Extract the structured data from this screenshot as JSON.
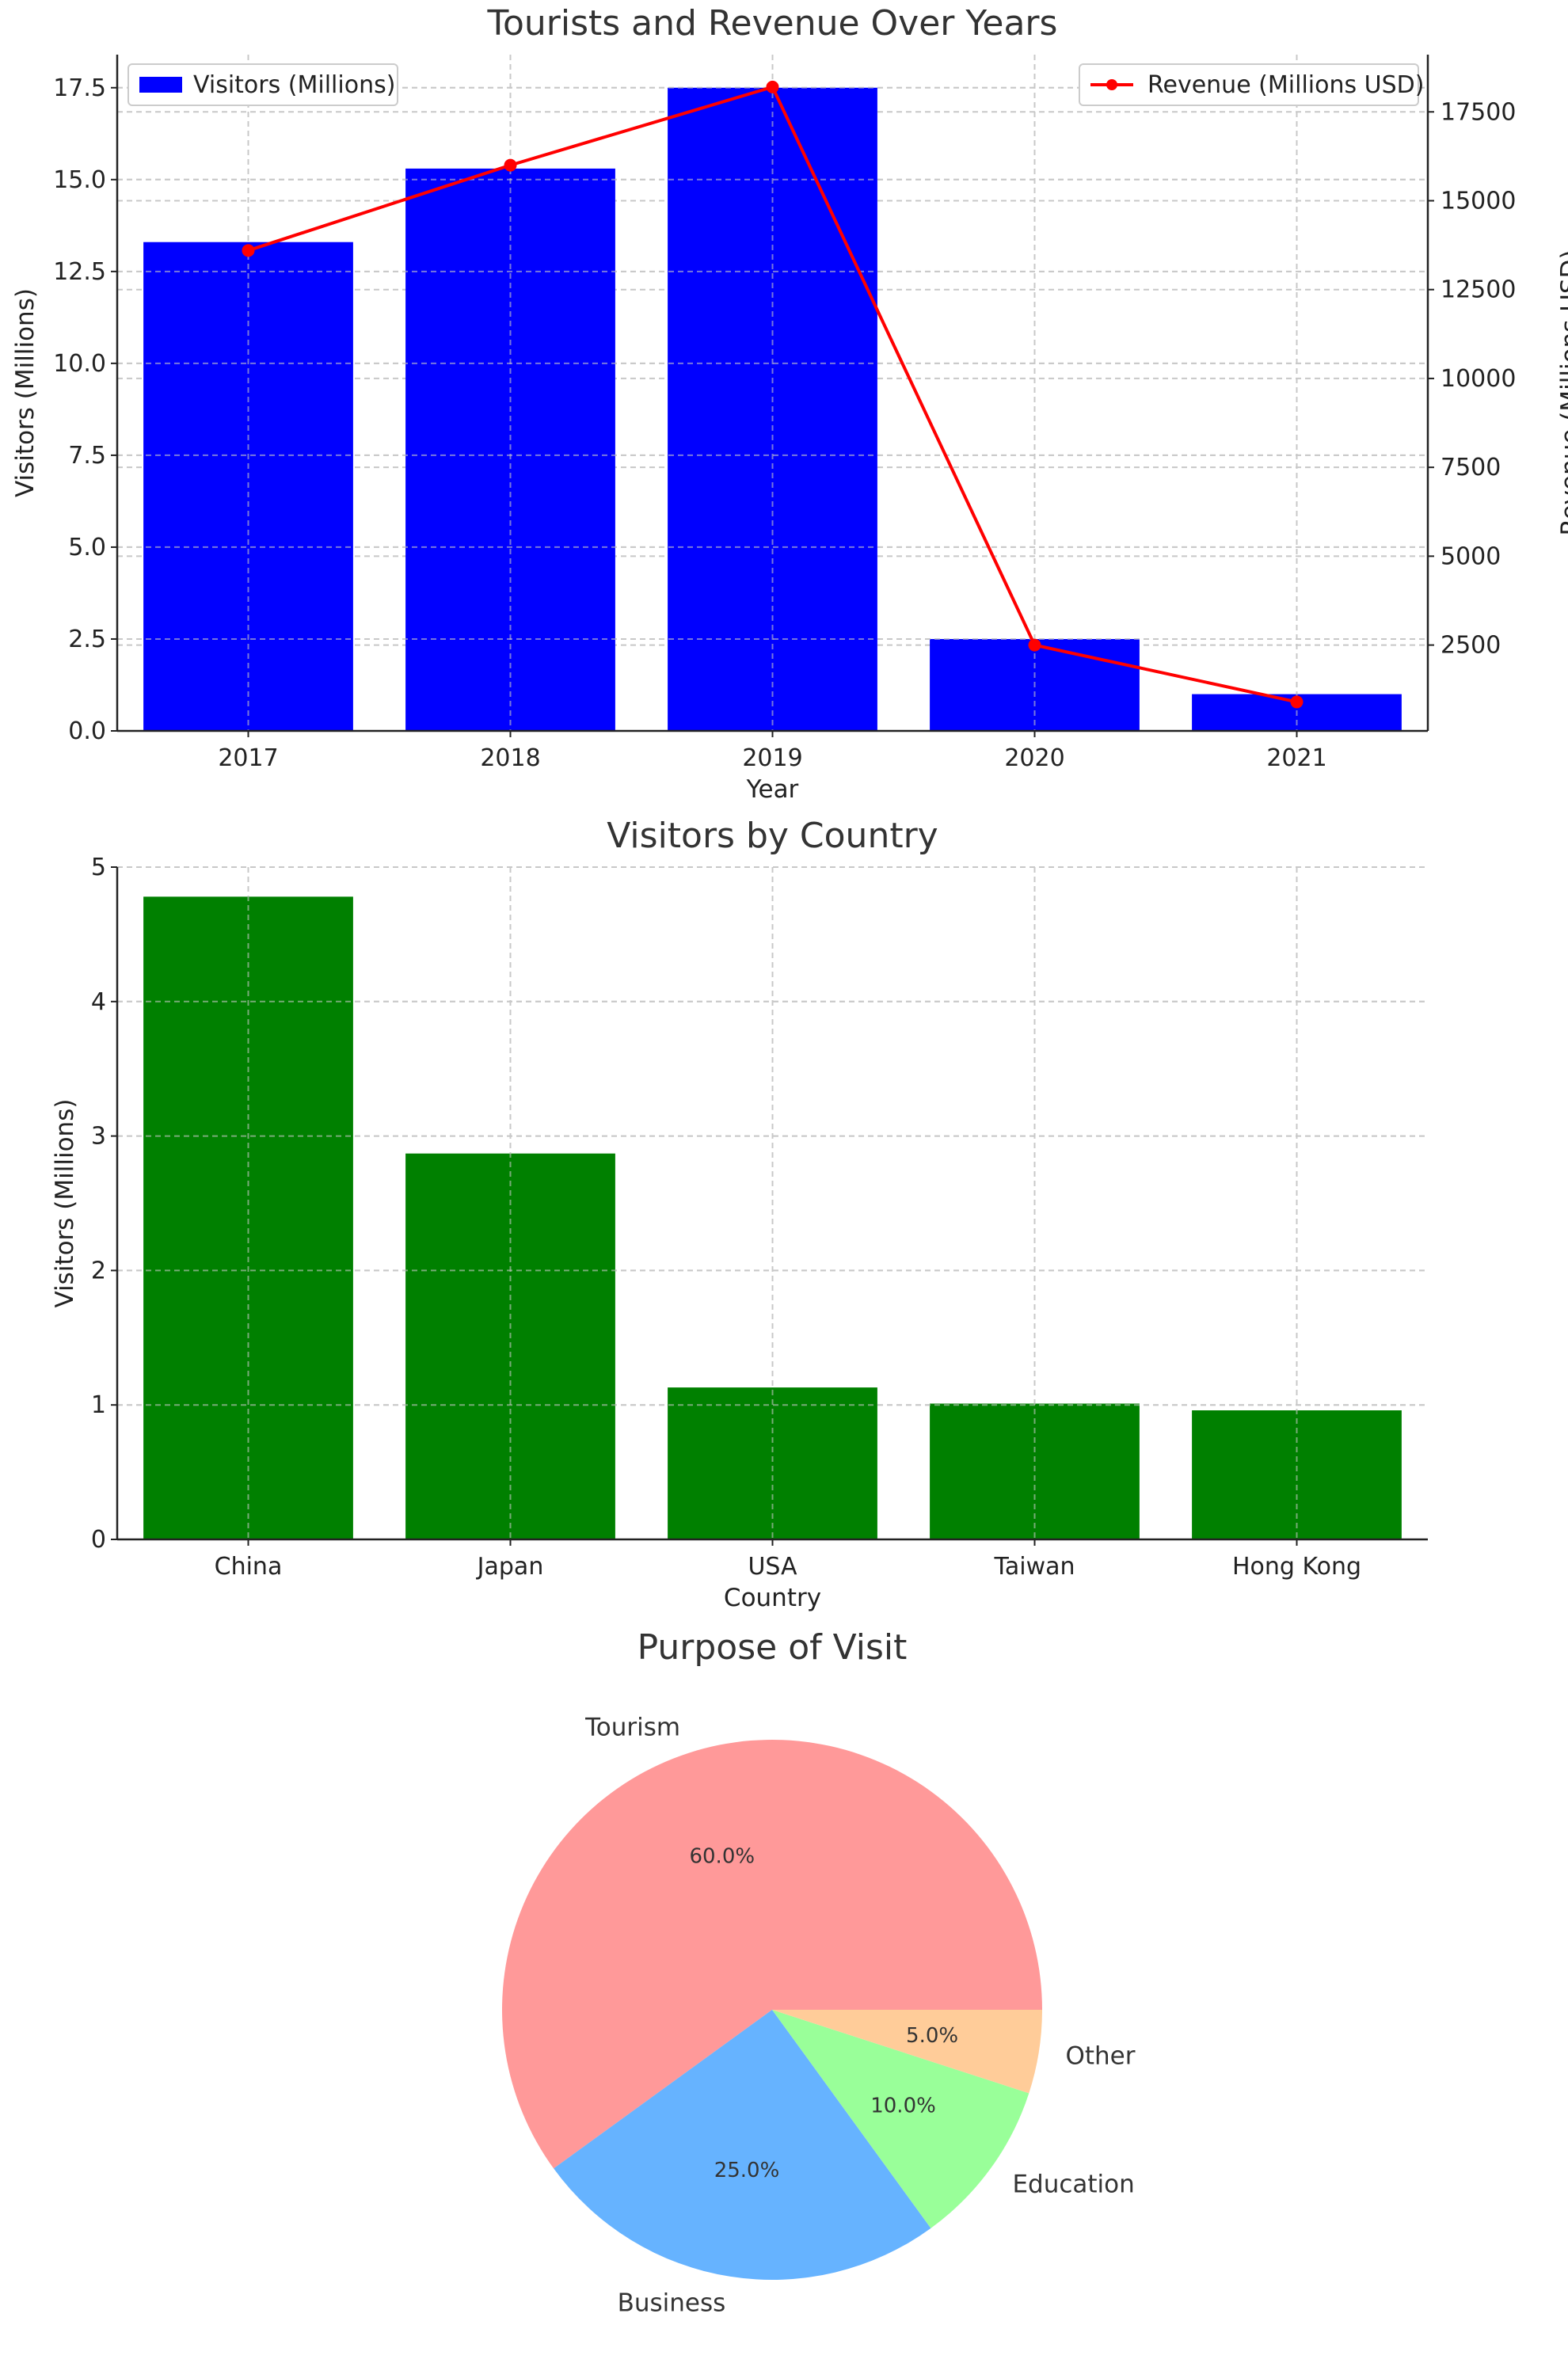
{
  "chart_data": [
    {
      "type": "bar+line",
      "title": "Tourists and Revenue Over Years",
      "xlabel": "Year",
      "ylabel": "Visitors (Millions)",
      "y2label": "Revenue (Millions USD)",
      "categories": [
        "2017",
        "2018",
        "2019",
        "2020",
        "2021"
      ],
      "series": [
        {
          "name": "Visitors (Millions)",
          "type": "bar",
          "color": "#0000ff",
          "values": [
            13.3,
            15.3,
            17.5,
            2.5,
            1.0
          ]
        },
        {
          "name": "Revenue (Millions USD)",
          "type": "line",
          "color": "#ff0000",
          "values": [
            13600,
            16000,
            18200,
            2500,
            900
          ]
        }
      ],
      "ylim": [
        0,
        18.4
      ],
      "y2lim": [
        85,
        19110
      ],
      "yticks": [
        "0.0",
        "2.5",
        "5.0",
        "7.5",
        "10.0",
        "12.5",
        "15.0",
        "17.5"
      ],
      "yticks_values": [
        0,
        2.5,
        5,
        7.5,
        10,
        12.5,
        15,
        17.5
      ],
      "y2ticks": [
        "2500",
        "5000",
        "7500",
        "10000",
        "12500",
        "15000",
        "17500"
      ],
      "y2ticks_values": [
        2500,
        5000,
        7500,
        10000,
        12500,
        15000,
        17500
      ],
      "grid": true,
      "legend": [
        "top-left",
        "top-right"
      ]
    },
    {
      "type": "bar",
      "title": "Visitors by Country",
      "xlabel": "Country",
      "ylabel": "Visitors (Millions)",
      "categories": [
        "China",
        "Japan",
        "USA",
        "Taiwan",
        "Hong Kong"
      ],
      "values": [
        4.78,
        2.87,
        1.13,
        1.01,
        0.96
      ],
      "color": "#008000",
      "ylim": [
        0,
        5
      ],
      "yticks": [
        "0",
        "1",
        "2",
        "3",
        "4",
        "5"
      ],
      "yticks_values": [
        0,
        1,
        2,
        3,
        4,
        5
      ],
      "grid": true
    },
    {
      "type": "pie",
      "title": "Purpose of Visit",
      "labels": [
        "Tourism",
        "Business",
        "Education",
        "Other"
      ],
      "values": [
        60,
        25,
        10,
        5
      ],
      "pct_labels": [
        "60.0%",
        "25.0%",
        "10.0%",
        "5.0%"
      ],
      "colors": [
        "#ff9999",
        "#66b3ff",
        "#99ff99",
        "#ffcc99"
      ]
    }
  ]
}
